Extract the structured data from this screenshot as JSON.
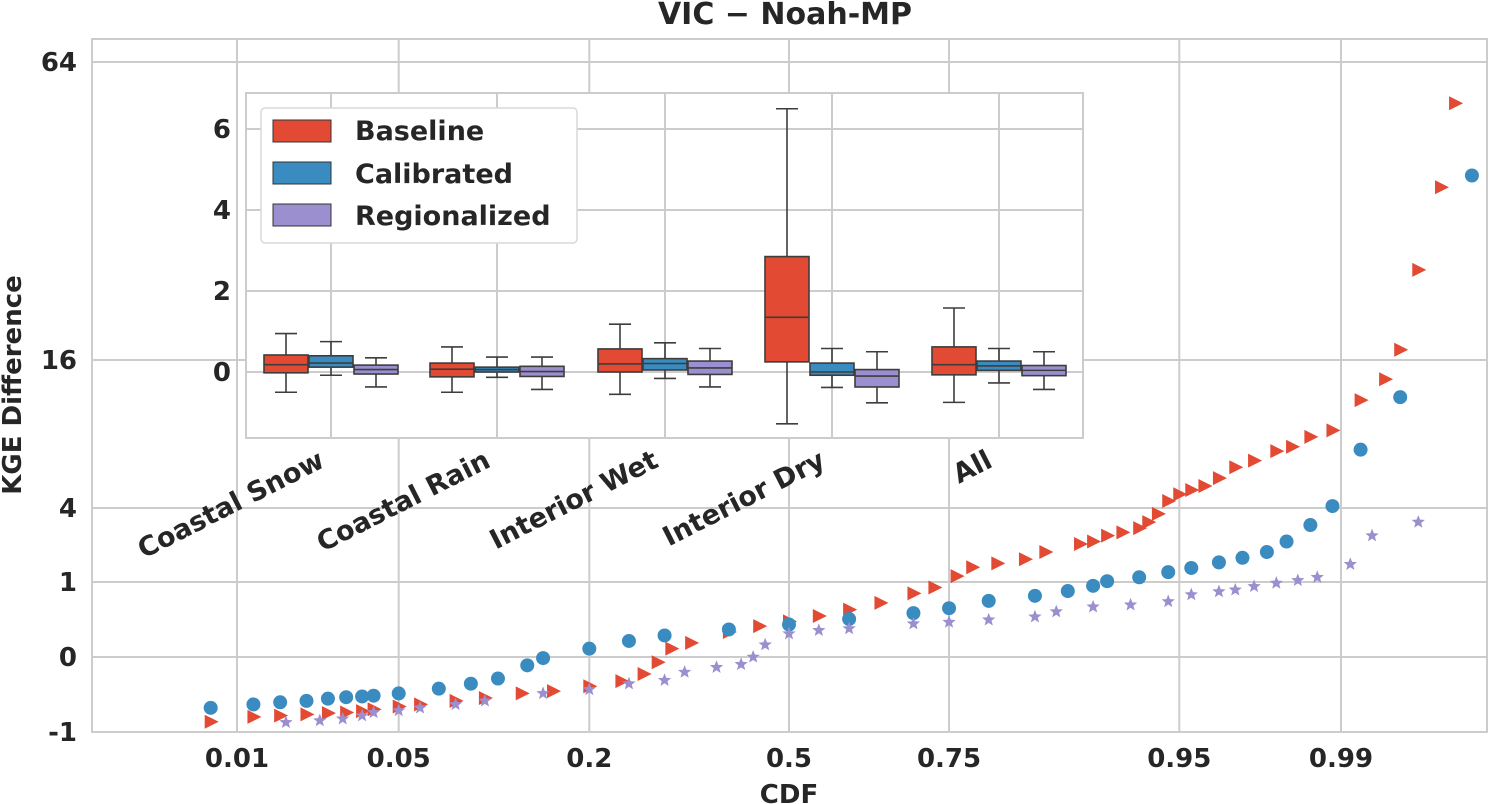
{
  "chart_data": [
    {
      "type": "scatter",
      "title": "VIC − Noah-MP",
      "xlabel": "CDF",
      "ylabel": "KGE Difference",
      "x_scale": "probit",
      "y_scale": "symlog",
      "x_ticks": [
        0.01,
        0.05,
        0.2,
        0.5,
        0.75,
        0.95,
        0.99
      ],
      "x_tick_labels": [
        "0.01",
        "0.05",
        "0.2",
        "0.5",
        "0.75",
        "0.95",
        "0.99"
      ],
      "y_ticks": [
        -1,
        0,
        1,
        4,
        16,
        64
      ],
      "y_tick_labels": [
        "-1",
        "0",
        "1",
        "4",
        "16",
        "64"
      ],
      "grid": true,
      "colors": {
        "baseline": "#e34a33",
        "calibrated": "#3a8bc0",
        "regionalized": "#9b8fcf"
      },
      "series": [
        {
          "name": "Baseline",
          "marker": "triangle-right",
          "points": [
            [
              0.0074,
              -0.82
            ],
            [
              0.012,
              -0.74
            ],
            [
              0.016,
              -0.72
            ],
            [
              0.021,
              -0.7
            ],
            [
              0.026,
              -0.68
            ],
            [
              0.031,
              -0.67
            ],
            [
              0.036,
              -0.65
            ],
            [
              0.04,
              -0.62
            ],
            [
              0.05,
              -0.58
            ],
            [
              0.06,
              -0.55
            ],
            [
              0.08,
              -0.5
            ],
            [
              0.1,
              -0.46
            ],
            [
              0.13,
              -0.4
            ],
            [
              0.16,
              -0.37
            ],
            [
              0.2,
              -0.31
            ],
            [
              0.24,
              -0.25
            ],
            [
              0.27,
              -0.17
            ],
            [
              0.29,
              -0.05
            ],
            [
              0.31,
              0.08
            ],
            [
              0.34,
              0.14
            ],
            [
              0.4,
              0.26
            ],
            [
              0.45,
              0.33
            ],
            [
              0.5,
              0.39
            ],
            [
              0.55,
              0.46
            ],
            [
              0.6,
              0.55
            ],
            [
              0.65,
              0.65
            ],
            [
              0.7,
              0.8
            ],
            [
              0.73,
              0.9
            ],
            [
              0.76,
              1.15
            ],
            [
              0.78,
              1.4
            ],
            [
              0.81,
              1.52
            ],
            [
              0.84,
              1.65
            ],
            [
              0.86,
              1.9
            ],
            [
              0.89,
              2.2
            ],
            [
              0.9,
              2.3
            ],
            [
              0.91,
              2.55
            ],
            [
              0.92,
              2.7
            ],
            [
              0.93,
              2.9
            ],
            [
              0.935,
              3.2
            ],
            [
              0.94,
              3.65
            ],
            [
              0.945,
              4.3
            ],
            [
              0.95,
              4.6
            ],
            [
              0.955,
              4.8
            ],
            [
              0.96,
              5.0
            ],
            [
              0.965,
              5.4
            ],
            [
              0.97,
              6.0
            ],
            [
              0.975,
              6.4
            ],
            [
              0.98,
              7.0
            ],
            [
              0.983,
              7.3
            ],
            [
              0.986,
              8.0
            ],
            [
              0.989,
              8.5
            ],
            [
              0.992,
              11.2
            ],
            [
              0.994,
              13.5
            ],
            [
              0.995,
              16.8
            ],
            [
              0.996,
              24.5
            ],
            [
              0.997,
              36.0
            ],
            [
              0.9975,
              53.0
            ]
          ]
        },
        {
          "name": "Calibrated",
          "marker": "circle",
          "points": [
            [
              0.0074,
              -0.6
            ],
            [
              0.012,
              -0.55
            ],
            [
              0.016,
              -0.52
            ],
            [
              0.021,
              -0.5
            ],
            [
              0.026,
              -0.47
            ],
            [
              0.031,
              -0.45
            ],
            [
              0.036,
              -0.44
            ],
            [
              0.04,
              -0.43
            ],
            [
              0.05,
              -0.4
            ],
            [
              0.07,
              -0.34
            ],
            [
              0.09,
              -0.28
            ],
            [
              0.11,
              -0.22
            ],
            [
              0.135,
              -0.08
            ],
            [
              0.15,
              -0.01
            ],
            [
              0.2,
              0.08
            ],
            [
              0.25,
              0.16
            ],
            [
              0.3,
              0.22
            ],
            [
              0.4,
              0.29
            ],
            [
              0.5,
              0.35
            ],
            [
              0.6,
              0.42
            ],
            [
              0.7,
              0.5
            ],
            [
              0.75,
              0.57
            ],
            [
              0.8,
              0.68
            ],
            [
              0.85,
              0.76
            ],
            [
              0.88,
              0.84
            ],
            [
              0.9,
              0.93
            ],
            [
              0.91,
              1.02
            ],
            [
              0.93,
              1.12
            ],
            [
              0.945,
              1.26
            ],
            [
              0.955,
              1.38
            ],
            [
              0.965,
              1.55
            ],
            [
              0.972,
              1.7
            ],
            [
              0.978,
              1.9
            ],
            [
              0.982,
              2.3
            ],
            [
              0.986,
              3.05
            ],
            [
              0.989,
              4.08
            ],
            [
              0.992,
              7.1
            ],
            [
              0.995,
              11.5
            ],
            [
              0.998,
              38.0
            ]
          ]
        },
        {
          "name": "Regionalized",
          "marker": "star",
          "points": [
            [
              0.017,
              -0.83
            ],
            [
              0.024,
              -0.8
            ],
            [
              0.03,
              -0.77
            ],
            [
              0.036,
              -0.72
            ],
            [
              0.04,
              -0.67
            ],
            [
              0.05,
              -0.64
            ],
            [
              0.06,
              -0.6
            ],
            [
              0.08,
              -0.55
            ],
            [
              0.1,
              -0.5
            ],
            [
              0.15,
              -0.4
            ],
            [
              0.2,
              -0.35
            ],
            [
              0.25,
              -0.28
            ],
            [
              0.3,
              -0.24
            ],
            [
              0.33,
              -0.15
            ],
            [
              0.38,
              -0.1
            ],
            [
              0.42,
              -0.07
            ],
            [
              0.44,
              0.0
            ],
            [
              0.46,
              0.12
            ],
            [
              0.5,
              0.24
            ],
            [
              0.55,
              0.28
            ],
            [
              0.6,
              0.3
            ],
            [
              0.7,
              0.36
            ],
            [
              0.75,
              0.38
            ],
            [
              0.8,
              0.41
            ],
            [
              0.85,
              0.45
            ],
            [
              0.87,
              0.52
            ],
            [
              0.9,
              0.59
            ],
            [
              0.925,
              0.62
            ],
            [
              0.945,
              0.67
            ],
            [
              0.955,
              0.78
            ],
            [
              0.965,
              0.83
            ],
            [
              0.97,
              0.86
            ],
            [
              0.975,
              0.92
            ],
            [
              0.98,
              0.98
            ],
            [
              0.984,
              1.04
            ],
            [
              0.987,
              1.12
            ],
            [
              0.991,
              1.49
            ],
            [
              0.993,
              2.55
            ],
            [
              0.996,
              3.2
            ]
          ]
        }
      ]
    },
    {
      "type": "box",
      "inset": true,
      "categories": [
        "Coastal Snow",
        "Coastal Rain",
        "Interior Wet",
        "Interior Dry",
        "All"
      ],
      "y_ticks": [
        0,
        2,
        4,
        6
      ],
      "y_tick_labels": [
        "0",
        "2",
        "4",
        "6"
      ],
      "ylim": [
        -1.6,
        6.9
      ],
      "legend": {
        "position": "upper-left",
        "entries": [
          "Baseline",
          "Calibrated",
          "Regionalized"
        ]
      },
      "series": [
        {
          "name": "Baseline",
          "boxes": [
            {
              "whislo": -0.5,
              "q1": -0.02,
              "med": 0.18,
              "q3": 0.42,
              "whishi": 0.95
            },
            {
              "whislo": -0.5,
              "q1": -0.12,
              "med": 0.07,
              "q3": 0.22,
              "whishi": 0.62
            },
            {
              "whislo": -0.55,
              "q1": 0.0,
              "med": 0.2,
              "q3": 0.57,
              "whishi": 1.18
            },
            {
              "whislo": -1.28,
              "q1": 0.25,
              "med": 1.35,
              "q3": 2.85,
              "whishi": 6.5
            },
            {
              "whislo": -0.75,
              "q1": -0.07,
              "med": 0.18,
              "q3": 0.62,
              "whishi": 1.58
            }
          ]
        },
        {
          "name": "Calibrated",
          "boxes": [
            {
              "whislo": -0.08,
              "q1": 0.12,
              "med": 0.22,
              "q3": 0.4,
              "whishi": 0.75
            },
            {
              "whislo": -0.13,
              "q1": 0.0,
              "med": 0.06,
              "q3": 0.12,
              "whishi": 0.37
            },
            {
              "whislo": -0.16,
              "q1": 0.05,
              "med": 0.21,
              "q3": 0.33,
              "whishi": 0.72
            },
            {
              "whislo": -0.38,
              "q1": -0.08,
              "med": 0.0,
              "q3": 0.22,
              "whishi": 0.58
            },
            {
              "whislo": -0.27,
              "q1": 0.04,
              "med": 0.15,
              "q3": 0.27,
              "whishi": 0.58
            }
          ]
        },
        {
          "name": "Regionalized",
          "boxes": [
            {
              "whislo": -0.37,
              "q1": -0.05,
              "med": 0.06,
              "q3": 0.17,
              "whishi": 0.35
            },
            {
              "whislo": -0.43,
              "q1": -0.11,
              "med": 0.01,
              "q3": 0.14,
              "whishi": 0.37
            },
            {
              "whislo": -0.37,
              "q1": -0.06,
              "med": 0.1,
              "q3": 0.27,
              "whishi": 0.58
            },
            {
              "whislo": -0.76,
              "q1": -0.37,
              "med": -0.1,
              "q3": 0.06,
              "whishi": 0.5
            },
            {
              "whislo": -0.43,
              "q1": -0.09,
              "med": 0.04,
              "q3": 0.16,
              "whishi": 0.5
            }
          ]
        }
      ]
    }
  ]
}
